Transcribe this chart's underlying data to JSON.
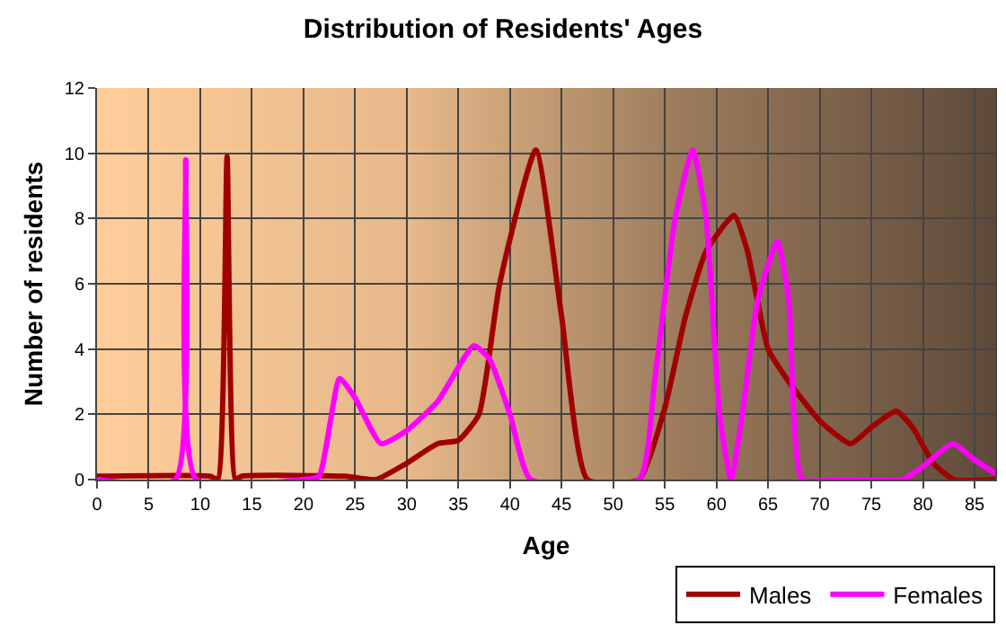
{
  "chart_data": {
    "type": "line",
    "title": "Distribution of Residents' Ages",
    "xlabel": "Age",
    "ylabel": "Number of residents",
    "xlim": [
      0,
      87
    ],
    "xticks": [
      0,
      5,
      10,
      15,
      20,
      25,
      30,
      35,
      40,
      45,
      50,
      55,
      60,
      65,
      70,
      75,
      80,
      85
    ],
    "ylim": [
      0,
      12
    ],
    "yticks": [
      0,
      2,
      4,
      6,
      8,
      10,
      12
    ],
    "grid": true,
    "legend": "bottom right",
    "marker": "none",
    "line_style": "solid",
    "series": [
      {
        "name": "Males",
        "color": "#a00000",
        "x": [
          0,
          11,
          11.7,
          12.6,
          13.4,
          14,
          24,
          27,
          30,
          33,
          35,
          37,
          39,
          42.5,
          45,
          47.5,
          52.5,
          55,
          57,
          59,
          61.7,
          63,
          65,
          67,
          70,
          73,
          75,
          77.4,
          79,
          81,
          83,
          87
        ],
        "values": [
          0.1,
          0.1,
          0,
          9.9,
          0,
          0.1,
          0.1,
          0,
          0.5,
          1.1,
          1.2,
          2,
          6,
          10.1,
          5,
          0,
          0,
          2.2,
          5,
          7,
          8.1,
          7,
          4,
          3,
          1.8,
          1.1,
          1.6,
          2.1,
          1.6,
          0.5,
          0,
          0
        ]
      },
      {
        "name": "Females",
        "color": "#ff00ff",
        "x": [
          0,
          7.6,
          8.6,
          9.6,
          20,
          21.5,
          23.5,
          25,
          27.5,
          30,
          33,
          36.5,
          38,
          40,
          42,
          52.5,
          54,
          56,
          57.7,
          59,
          60.3,
          61.4,
          62.5,
          64,
          65.9,
          67,
          68.3,
          72,
          78,
          80,
          82.9,
          85,
          87
        ],
        "values": [
          0,
          0,
          9.8,
          0,
          0,
          0.1,
          3.1,
          2.5,
          1.1,
          1.5,
          2.4,
          4.1,
          3.7,
          2,
          0,
          0,
          3,
          8,
          10.1,
          8,
          2,
          0,
          2,
          5.5,
          7.3,
          5.5,
          0,
          0,
          0,
          0.4,
          1.1,
          0.6,
          0.2
        ]
      }
    ]
  }
}
